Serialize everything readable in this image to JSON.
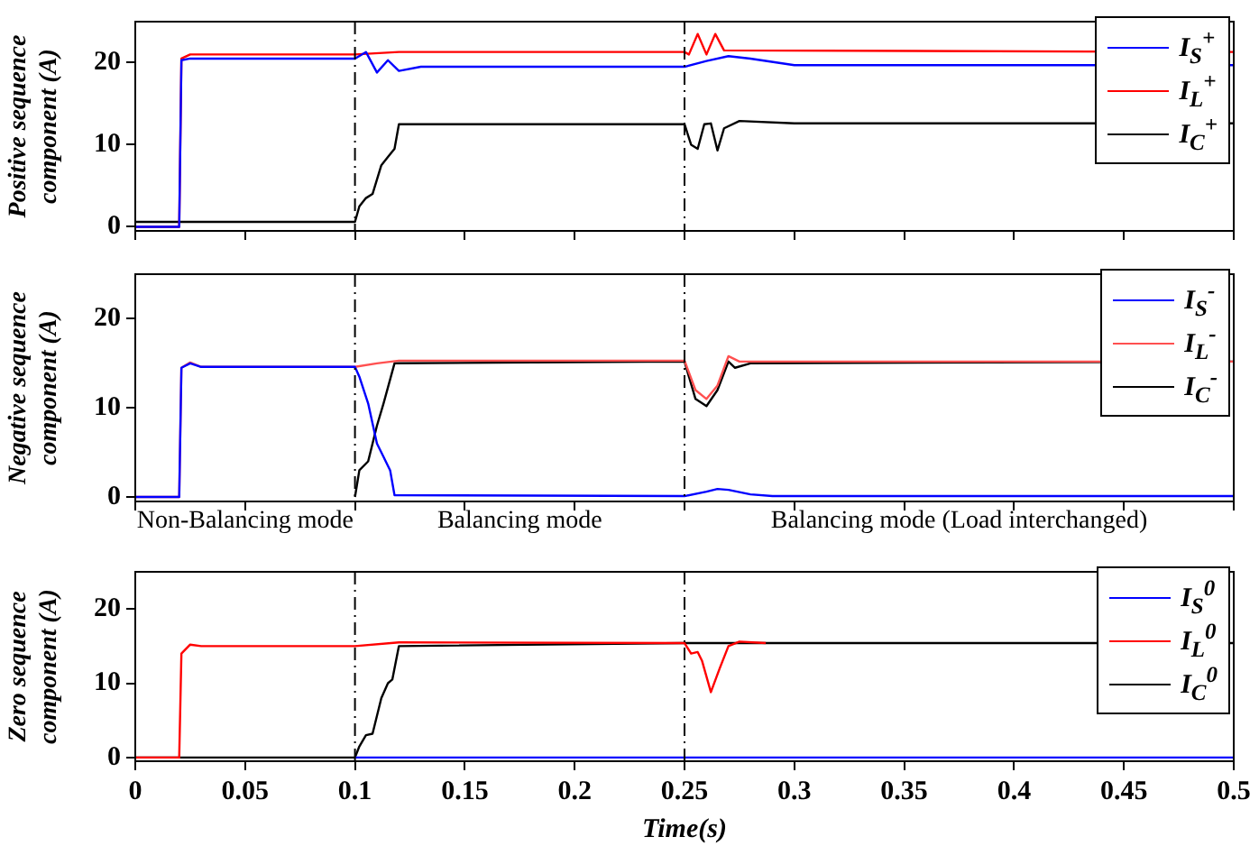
{
  "chart_data": [
    {
      "type": "line",
      "ylabel": "Positive sequence\ncomponent (A)",
      "xlim": [
        0,
        0.5
      ],
      "xticks": [
        0,
        0.05,
        0.1,
        0.15,
        0.2,
        0.25,
        0.3,
        0.35,
        0.4,
        0.45,
        0.5
      ],
      "ylim": [
        -0.5,
        25
      ],
      "yticks": [
        0,
        10,
        20
      ],
      "tick_labels": "y",
      "grid": false,
      "legend": "top right",
      "marker": "none",
      "line_style": "solid",
      "ref_lines": [
        {
          "axis": "x",
          "value": 0.1,
          "color": "#000000",
          "line_style": "dashed"
        },
        {
          "axis": "x",
          "value": 0.25,
          "color": "#000000",
          "line_style": "dashed"
        }
      ],
      "series": [
        {
          "name": "I$_{S}$$^{+}$",
          "color": "#0000ff",
          "x": [
            0,
            0.02,
            0.021,
            0.025,
            0.1,
            0.105,
            0.11,
            0.115,
            0.12,
            0.13,
            0.25,
            0.26,
            0.27,
            0.28,
            0.3,
            0.5
          ],
          "values": [
            0,
            0,
            20.3,
            20.5,
            20.5,
            21.3,
            18.8,
            20.3,
            19.0,
            19.5,
            19.5,
            20.2,
            20.8,
            20.5,
            19.7,
            19.7
          ]
        },
        {
          "name": "I$_{L}$$^{+}$",
          "color": "#ff0000",
          "x": [
            0,
            0.02,
            0.021,
            0.025,
            0.1,
            0.12,
            0.25,
            0.252,
            0.256,
            0.26,
            0.264,
            0.268,
            0.5
          ],
          "values": [
            0,
            0,
            20.5,
            21,
            21,
            21.3,
            21.3,
            21,
            23.5,
            21,
            23.5,
            21.5,
            21.3
          ]
        },
        {
          "name": "I$_{C}$$^{+}$",
          "color": "#000000",
          "x": [
            0,
            0.1,
            0.102,
            0.105,
            0.108,
            0.112,
            0.115,
            0.118,
            0.12,
            0.25,
            0.253,
            0.256,
            0.259,
            0.262,
            0.265,
            0.268,
            0.275,
            0.3,
            0.5
          ],
          "values": [
            0.6,
            0.6,
            2.5,
            3.5,
            4,
            7.5,
            8.5,
            9.5,
            12.5,
            12.5,
            10,
            9.5,
            12.5,
            12.6,
            9.3,
            12,
            12.9,
            12.6,
            12.6
          ]
        }
      ]
    },
    {
      "type": "line",
      "ylabel": "Negative sequence\ncomponent (A)",
      "xlim": [
        0,
        0.5
      ],
      "xticks": [
        0,
        0.05,
        0.1,
        0.15,
        0.2,
        0.25,
        0.3,
        0.35,
        0.4,
        0.45,
        0.5
      ],
      "ylim": [
        -0.5,
        25
      ],
      "yticks": [
        0,
        10,
        20
      ],
      "tick_labels": "y",
      "grid": false,
      "legend": "top right",
      "marker": "none",
      "line_style": "solid",
      "annotations": [
        "Non-Balancing mode",
        "Balancing mode",
        "Balancing mode (Load interchanged)"
      ],
      "ref_lines": [
        {
          "axis": "x",
          "value": 0.1,
          "color": "#000000",
          "line_style": "dashed"
        },
        {
          "axis": "x",
          "value": 0.25,
          "color": "#000000",
          "line_style": "dashed"
        }
      ],
      "series": [
        {
          "name": "I$_{S}$$^{-}$",
          "color": "#0000ff",
          "x": [
            0,
            0.02,
            0.021,
            0.025,
            0.03,
            0.1,
            0.102,
            0.106,
            0.11,
            0.113,
            0.116,
            0.118,
            0.25,
            0.26,
            0.265,
            0.27,
            0.28,
            0.29,
            0.5
          ],
          "values": [
            0,
            0,
            14.5,
            15,
            14.6,
            14.6,
            13.5,
            10.5,
            6,
            4.5,
            3,
            0.2,
            0.1,
            0.6,
            0.9,
            0.8,
            0.3,
            0.1,
            0.1
          ]
        },
        {
          "name": "I$_{L}$$^{-}$",
          "color": "#ff5050",
          "x": [
            0,
            0.02,
            0.021,
            0.025,
            0.03,
            0.1,
            0.11,
            0.12,
            0.25,
            0.255,
            0.26,
            0.265,
            0.27,
            0.275,
            0.5
          ],
          "values": [
            0,
            0,
            14.5,
            15.1,
            14.6,
            14.6,
            15,
            15.3,
            15.3,
            12,
            11,
            12.5,
            15.8,
            15.2,
            15.2
          ]
        },
        {
          "name": "I$_{C}$$^{-}$",
          "color": "#000000",
          "x": [
            0.1,
            0.102,
            0.106,
            0.11,
            0.113,
            0.118,
            0.25,
            0.255,
            0.26,
            0.265,
            0.27,
            0.273,
            0.28,
            0.5
          ],
          "values": [
            0,
            3,
            4,
            8,
            10.5,
            15,
            15.2,
            11,
            10.2,
            12,
            15.2,
            14.5,
            15,
            15.2
          ]
        }
      ]
    },
    {
      "type": "line",
      "ylabel": "Zero sequence\ncomponent (A)",
      "xlabel": "Time(s)",
      "xlim": [
        0,
        0.5
      ],
      "xticks": [
        0,
        0.05,
        0.1,
        0.15,
        0.2,
        0.25,
        0.3,
        0.35,
        0.4,
        0.45,
        0.5
      ],
      "ylim": [
        -0.5,
        25
      ],
      "yticks": [
        0,
        10,
        20
      ],
      "grid": false,
      "legend": "top right",
      "marker": "none",
      "line_style": "solid",
      "ref_lines": [
        {
          "axis": "x",
          "value": 0.1,
          "color": "#000000",
          "line_style": "dashed"
        },
        {
          "axis": "x",
          "value": 0.25,
          "color": "#000000",
          "line_style": "dashed"
        }
      ],
      "series": [
        {
          "name": "I$_{S}$$^{0}$",
          "color": "#0000ff",
          "x": [
            0.1,
            0.5
          ],
          "values": [
            0,
            0
          ]
        },
        {
          "name": "I$_{L}$$^{0}$",
          "color": "#ff0000",
          "x": [
            0,
            0.02,
            0.021,
            0.025,
            0.03,
            0.1,
            0.12,
            0.25,
            0.253,
            0.256,
            0.258,
            0.262,
            0.266,
            0.27,
            0.275,
            0.287
          ],
          "values": [
            0,
            0,
            14,
            15.2,
            15,
            15,
            15.5,
            15.4,
            14,
            14.2,
            13,
            8.8,
            12,
            15,
            15.6,
            15.4
          ]
        },
        {
          "name": "I$_{C}$$^{0}$",
          "color": "#000000",
          "x": [
            0,
            0.1,
            0.102,
            0.105,
            0.108,
            0.112,
            0.115,
            0.117,
            0.12,
            0.25,
            0.287,
            0.5
          ],
          "values": [
            0,
            0,
            1.5,
            3,
            3.2,
            8,
            10,
            10.5,
            15,
            15.4,
            15.4,
            15.4
          ]
        }
      ]
    }
  ]
}
